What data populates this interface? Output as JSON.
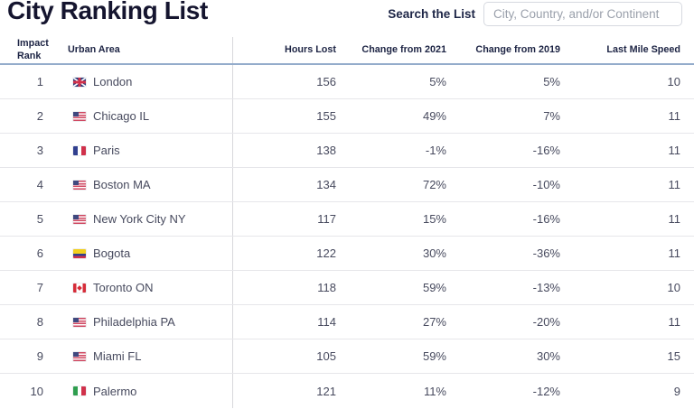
{
  "page": {
    "title": "City Ranking List"
  },
  "search": {
    "label": "Search the List",
    "placeholder": "City, Country, and/or Continent",
    "value": ""
  },
  "colors": {
    "title_text": "#15152f",
    "header_text": "#1d2444",
    "data_text": "#474a5e",
    "header_underline": "#94accb",
    "row_divider": "#e6e6ea",
    "column_divider": "#d8d8dc"
  },
  "table": {
    "columns": [
      "Impact Rank",
      "Urban Area",
      "Hours Lost",
      "Change from 2021",
      "Change from 2019",
      "Last Mile Speed"
    ],
    "rows": [
      {
        "rank": "1",
        "flag": "gb",
        "city": "London",
        "hours_lost": "156",
        "change_2021": "5%",
        "change_2019": "5%",
        "last_mile_speed": "10"
      },
      {
        "rank": "2",
        "flag": "us",
        "city": "Chicago IL",
        "hours_lost": "155",
        "change_2021": "49%",
        "change_2019": "7%",
        "last_mile_speed": "11"
      },
      {
        "rank": "3",
        "flag": "fr",
        "city": "Paris",
        "hours_lost": "138",
        "change_2021": "-1%",
        "change_2019": "-16%",
        "last_mile_speed": "11"
      },
      {
        "rank": "4",
        "flag": "us",
        "city": "Boston MA",
        "hours_lost": "134",
        "change_2021": "72%",
        "change_2019": "-10%",
        "last_mile_speed": "11"
      },
      {
        "rank": "5",
        "flag": "us",
        "city": "New York City NY",
        "hours_lost": "117",
        "change_2021": "15%",
        "change_2019": "-16%",
        "last_mile_speed": "11"
      },
      {
        "rank": "6",
        "flag": "co",
        "city": "Bogota",
        "hours_lost": "122",
        "change_2021": "30%",
        "change_2019": "-36%",
        "last_mile_speed": "11"
      },
      {
        "rank": "7",
        "flag": "ca",
        "city": "Toronto ON",
        "hours_lost": "118",
        "change_2021": "59%",
        "change_2019": "-13%",
        "last_mile_speed": "10"
      },
      {
        "rank": "8",
        "flag": "us",
        "city": "Philadelphia PA",
        "hours_lost": "114",
        "change_2021": "27%",
        "change_2019": "-20%",
        "last_mile_speed": "11"
      },
      {
        "rank": "9",
        "flag": "us",
        "city": "Miami FL",
        "hours_lost": "105",
        "change_2021": "59%",
        "change_2019": "30%",
        "last_mile_speed": "15"
      },
      {
        "rank": "10",
        "flag": "it",
        "city": "Palermo",
        "hours_lost": "121",
        "change_2021": "11%",
        "change_2019": "-12%",
        "last_mile_speed": "9"
      }
    ]
  }
}
